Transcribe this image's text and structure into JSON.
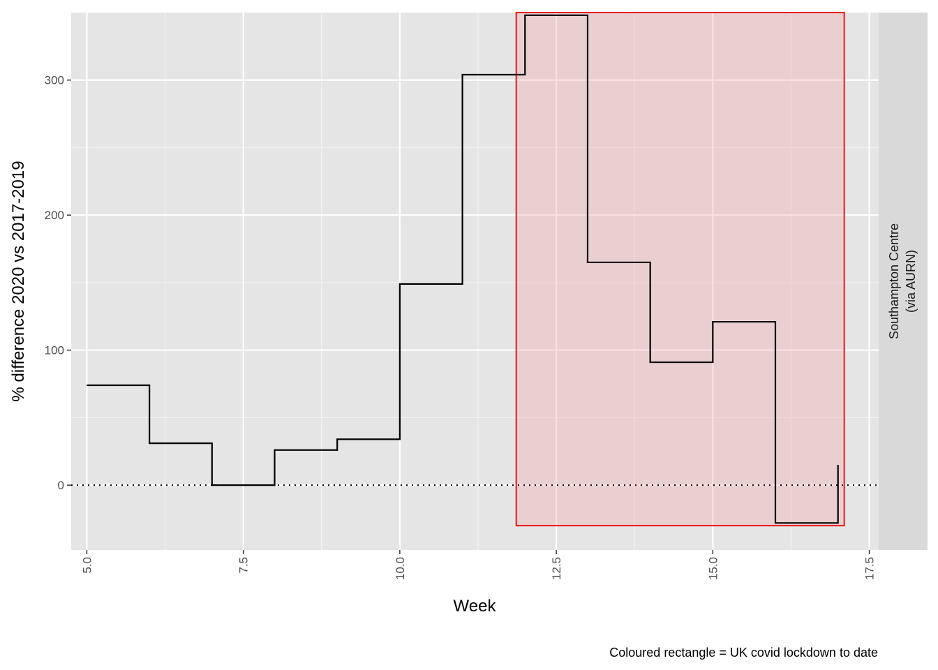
{
  "chart_data": {
    "type": "line",
    "step": "hv",
    "xlabel": "Week",
    "ylabel": "% difference 2020 vs 2017-2019",
    "caption": "Coloured rectangle = UK covid lockdown to date",
    "facet_label": [
      "Southampton Centre",
      "(via AURN)"
    ],
    "xlim": [
      4.75,
      17.65
    ],
    "ylim": [
      -48,
      350
    ],
    "x_ticks": [
      5.0,
      7.5,
      10.0,
      12.5,
      15.0,
      17.5
    ],
    "x_tick_labels": [
      "5.0",
      "7.5",
      "10.0",
      "12.5",
      "15.0",
      "17.5"
    ],
    "y_ticks": [
      0,
      100,
      200,
      300
    ],
    "y_tick_labels": [
      "0",
      "100",
      "200",
      "300"
    ],
    "reference_line": {
      "y": 0,
      "style": "dotted"
    },
    "lockdown_rectangle": {
      "xmin": 11.86,
      "xmax": 17.1,
      "ymin": -30,
      "ymax": 350,
      "fill": "#f4a7ad",
      "stroke": "#e8151c"
    },
    "series": [
      {
        "x": [
          5,
          6,
          7,
          8,
          9,
          10,
          11,
          12,
          13,
          14,
          15,
          16,
          17
        ],
        "values": [
          74,
          31,
          0,
          26,
          34,
          149,
          304,
          348,
          165,
          91,
          121,
          -28,
          15
        ],
        "color": "#000000"
      }
    ],
    "grid": true
  }
}
